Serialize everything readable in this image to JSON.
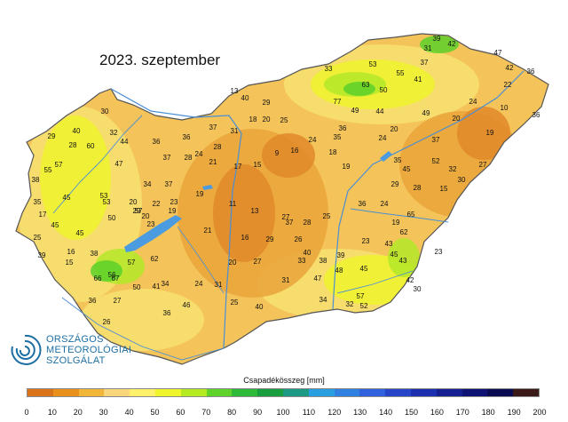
{
  "title": "2023. szeptember",
  "logo": {
    "name": "logo",
    "lines": [
      "ORSZÁGOS",
      "METEOROLÓGIAI",
      "SZOLGÁLAT"
    ],
    "color": "#1d6fa3"
  },
  "legend": {
    "title": "Csapadékösszeg [mm]",
    "ticks": [
      "0",
      "10",
      "20",
      "30",
      "40",
      "50",
      "60",
      "70",
      "80",
      "90",
      "100",
      "110",
      "120",
      "130",
      "140",
      "150",
      "160",
      "170",
      "180",
      "190",
      "200"
    ],
    "colors": [
      "#d9741a",
      "#e8901a",
      "#f1b638",
      "#f8d77c",
      "#fdf06a",
      "#eef52a",
      "#b6ea22",
      "#5fd32a",
      "#2fbb3a",
      "#199e3d",
      "#1d9a84",
      "#2a9fe0",
      "#2f80e0",
      "#2f62dc",
      "#2745c8",
      "#1b2fb0",
      "#141f92",
      "#0e1272",
      "#0a0a52",
      "#3a1a18"
    ]
  },
  "map_colors": {
    "base": "#f4c35a",
    "dry": "#e9a43a",
    "very_dry": "#e18a2a",
    "moist": "#f7e072",
    "wet": "#eef32e",
    "green_light": "#b4e829",
    "green": "#5cd02a",
    "lake": "#4a9be0",
    "river": "#4a8fd4",
    "border": "#555555"
  },
  "stations": [
    {
      "v": "30"
    },
    {
      "v": "29"
    },
    {
      "v": "28"
    },
    {
      "v": "40"
    },
    {
      "v": "32"
    },
    {
      "v": "44"
    },
    {
      "v": "36"
    },
    {
      "v": "36"
    },
    {
      "v": "37"
    },
    {
      "v": "31"
    },
    {
      "v": "18"
    },
    {
      "v": "20"
    },
    {
      "v": "25"
    },
    {
      "v": "29"
    },
    {
      "v": "13"
    },
    {
      "v": "40"
    },
    {
      "v": "28"
    },
    {
      "v": "24"
    },
    {
      "v": "17"
    },
    {
      "v": "15"
    },
    {
      "v": "9"
    },
    {
      "v": "16"
    },
    {
      "v": "18"
    },
    {
      "v": "19"
    },
    {
      "v": "24"
    },
    {
      "v": "35"
    },
    {
      "v": "60"
    },
    {
      "v": "47"
    },
    {
      "v": "37"
    },
    {
      "v": "28"
    },
    {
      "v": "34"
    },
    {
      "v": "37"
    },
    {
      "v": "19"
    },
    {
      "v": "21"
    },
    {
      "v": "20"
    },
    {
      "v": "22"
    },
    {
      "v": "23"
    },
    {
      "v": "20"
    },
    {
      "v": "50"
    },
    {
      "v": "29"
    },
    {
      "v": "23"
    },
    {
      "v": "19"
    },
    {
      "v": "11"
    },
    {
      "v": "13"
    },
    {
      "v": "27"
    },
    {
      "v": "28"
    },
    {
      "v": "36"
    },
    {
      "v": "24"
    },
    {
      "v": "45"
    },
    {
      "v": "16"
    },
    {
      "v": "15"
    },
    {
      "v": "45"
    },
    {
      "v": "38"
    },
    {
      "v": "21"
    },
    {
      "v": "16"
    },
    {
      "v": "29"
    },
    {
      "v": "57"
    },
    {
      "v": "62"
    },
    {
      "v": "20"
    },
    {
      "v": "27"
    },
    {
      "v": "34"
    },
    {
      "v": "31"
    },
    {
      "v": "47"
    },
    {
      "v": "67"
    },
    {
      "v": "50"
    },
    {
      "v": "41"
    },
    {
      "v": "24"
    },
    {
      "v": "31"
    },
    {
      "v": "48"
    },
    {
      "v": "45"
    },
    {
      "v": "36"
    },
    {
      "v": "27"
    },
    {
      "v": "25"
    },
    {
      "v": "40"
    },
    {
      "v": "34"
    },
    {
      "v": "32"
    },
    {
      "v": "36"
    },
    {
      "v": "46"
    },
    {
      "v": "26"
    },
    {
      "v": "57"
    },
    {
      "v": "55"
    },
    {
      "v": "38"
    },
    {
      "v": "45"
    },
    {
      "v": "53"
    },
    {
      "v": "57"
    },
    {
      "v": "53"
    },
    {
      "v": "33"
    },
    {
      "v": "63"
    },
    {
      "v": "77"
    },
    {
      "v": "49"
    },
    {
      "v": "50"
    },
    {
      "v": "44"
    },
    {
      "v": "36"
    },
    {
      "v": "20"
    },
    {
      "v": "24"
    },
    {
      "v": "35"
    },
    {
      "v": "41"
    },
    {
      "v": "55"
    },
    {
      "v": "49"
    },
    {
      "v": "37"
    },
    {
      "v": "32"
    },
    {
      "v": "20"
    },
    {
      "v": "19"
    },
    {
      "v": "24"
    },
    {
      "v": "10"
    },
    {
      "v": "36"
    },
    {
      "v": "27"
    },
    {
      "v": "30"
    },
    {
      "v": "15"
    },
    {
      "v": "28"
    },
    {
      "v": "29"
    },
    {
      "v": "45"
    },
    {
      "v": "52"
    },
    {
      "v": "53"
    },
    {
      "v": "37"
    },
    {
      "v": "31"
    },
    {
      "v": "39"
    },
    {
      "v": "42"
    },
    {
      "v": "47"
    },
    {
      "v": "22"
    },
    {
      "v": "42"
    },
    {
      "v": "36"
    },
    {
      "v": "39"
    },
    {
      "v": "25"
    },
    {
      "v": "17"
    },
    {
      "v": "35"
    },
    {
      "v": "66"
    },
    {
      "v": "56"
    },
    {
      "v": "62"
    },
    {
      "v": "43"
    },
    {
      "v": "43"
    },
    {
      "v": "23"
    },
    {
      "v": "42"
    },
    {
      "v": "30"
    },
    {
      "v": "57"
    },
    {
      "v": "52"
    },
    {
      "v": "23"
    },
    {
      "v": "19"
    },
    {
      "v": "45"
    },
    {
      "v": "65"
    },
    {
      "v": "37"
    },
    {
      "v": "26"
    },
    {
      "v": "33"
    },
    {
      "v": "40"
    },
    {
      "v": "25"
    },
    {
      "v": "38"
    },
    {
      "v": "39"
    },
    {
      "v": "40"
    },
    {
      "v": "30"
    },
    {
      "v": "33"
    },
    {
      "v": "38"
    }
  ]
}
